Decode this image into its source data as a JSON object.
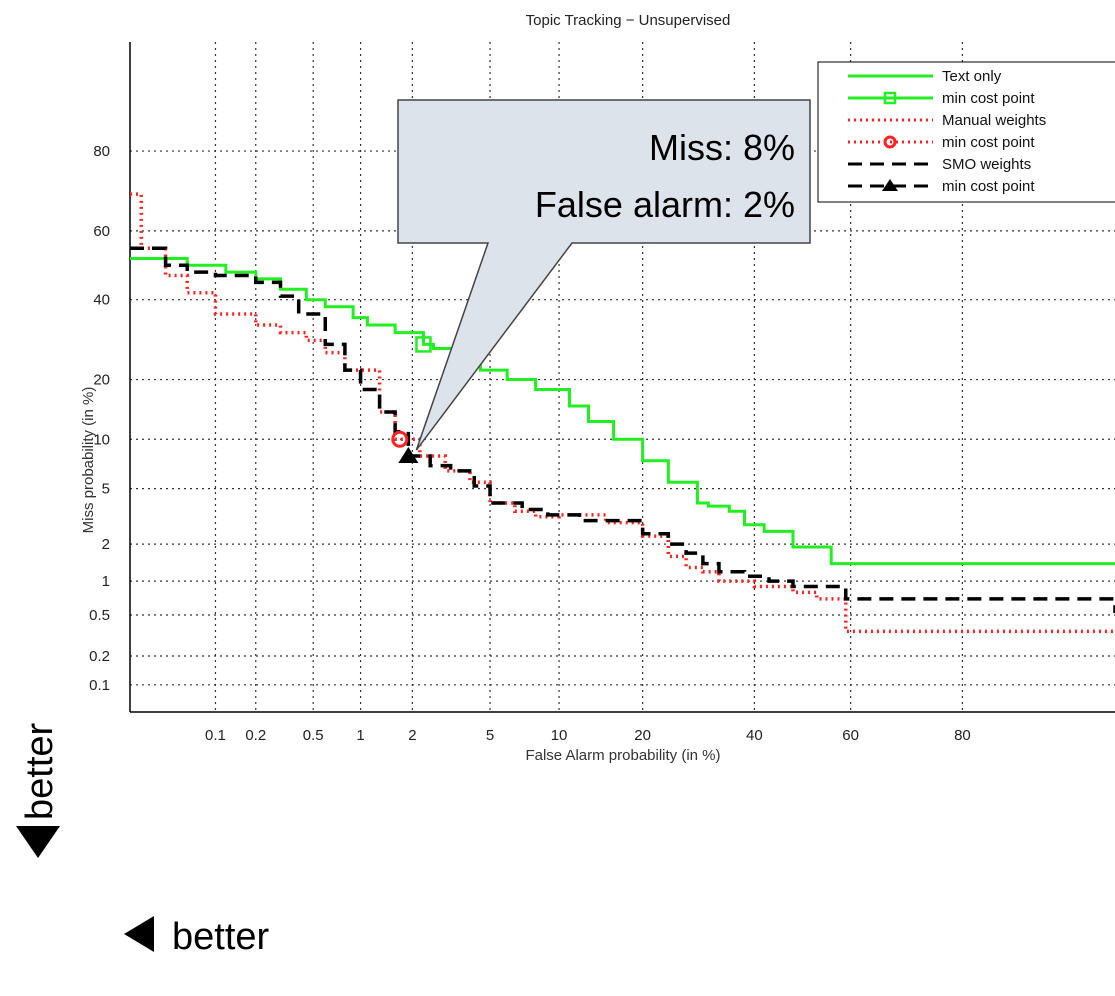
{
  "chart_data": {
    "type": "line",
    "title": "Topic Tracking − Unsupervised",
    "xlabel": "False Alarm probability (in %)",
    "ylabel": "Miss probability (in %)",
    "x_scale": "normal-deviate",
    "y_scale": "normal-deviate",
    "xlim": [
      0.02,
      95
    ],
    "ylim": [
      0.05,
      95
    ],
    "x_ticks": [
      0.1,
      0.2,
      0.5,
      1,
      2,
      5,
      10,
      20,
      40,
      60,
      80
    ],
    "x_tick_labels": [
      "0.1",
      "0.2",
      "0.5",
      "1",
      "2",
      "5",
      "10",
      "20",
      "40",
      "60",
      "80"
    ],
    "y_ticks": [
      0.1,
      0.2,
      0.5,
      1,
      2,
      5,
      10,
      20,
      40,
      60,
      80
    ],
    "y_tick_labels": [
      "0.1",
      "0.2",
      "0.5",
      "1",
      "2",
      "5",
      "10",
      "20",
      "40",
      "60",
      "80"
    ],
    "grid": true,
    "legend_position": "top-right",
    "series": [
      {
        "name": "Text only",
        "color": "#22ee22",
        "style": "solid",
        "x": [
          0.02,
          0.06,
          0.12,
          0.2,
          0.3,
          0.45,
          0.6,
          0.9,
          1.1,
          1.6,
          2.3,
          2.6,
          3.5,
          4.5,
          6,
          8,
          11,
          13,
          16,
          20,
          24,
          29,
          31,
          35,
          38,
          42,
          48,
          56,
          95
        ],
        "y": [
          52,
          50,
          48,
          46,
          43,
          40,
          38,
          35,
          33,
          31,
          28,
          27,
          24,
          22,
          20,
          18,
          15,
          12.5,
          10,
          7.5,
          5.5,
          4,
          3.8,
          3.5,
          2.8,
          2.5,
          1.9,
          1.4,
          1.4
        ]
      },
      {
        "name": "Manual weights",
        "color": "#ff2222",
        "style": "dotted",
        "x": [
          0.02,
          0.025,
          0.04,
          0.06,
          0.1,
          0.2,
          0.3,
          0.45,
          0.6,
          0.8,
          1.0,
          1.3,
          1.6,
          2.2,
          3.0,
          4.0,
          5.0,
          6.5,
          8.0,
          10,
          15,
          20,
          24,
          27,
          30,
          33,
          35,
          40,
          48,
          53,
          59,
          95
        ],
        "y": [
          70,
          55,
          47,
          42,
          36,
          33,
          31,
          29,
          26,
          22,
          22,
          14,
          10,
          8,
          6.5,
          5.5,
          4.0,
          3.5,
          3.2,
          3.3,
          2.9,
          2.3,
          1.6,
          1.3,
          1.2,
          1.0,
          1.0,
          0.9,
          0.8,
          0.7,
          0.35,
          0.35
        ]
      },
      {
        "name": "SMO weights",
        "color": "#000000",
        "style": "dashed",
        "x": [
          0.02,
          0.04,
          0.06,
          0.1,
          0.2,
          0.3,
          0.4,
          0.6,
          0.8,
          1.0,
          1.3,
          1.6,
          1.9,
          2.5,
          3.2,
          4.2,
          5.0,
          7.0,
          9.0,
          12,
          17,
          20,
          24,
          27,
          30,
          33,
          38,
          43,
          48,
          59,
          95
        ],
        "y": [
          55,
          50,
          48,
          47,
          45,
          41,
          36,
          28,
          22,
          18,
          14,
          11,
          8,
          7,
          6.5,
          5.2,
          4.0,
          3.6,
          3.3,
          3.0,
          3.0,
          2.4,
          2.0,
          1.7,
          1.4,
          1.2,
          1.1,
          1.0,
          0.9,
          0.7,
          0.52
        ]
      }
    ],
    "min_cost_points": [
      {
        "series": "Text only",
        "marker": "square",
        "x": 2.3,
        "y": 28,
        "color": "#22ee22"
      },
      {
        "series": "Manual weights",
        "marker": "circle",
        "x": 1.7,
        "y": 10,
        "color": "#ff2222"
      },
      {
        "series": "SMO weights",
        "marker": "triangle",
        "x": 1.9,
        "y": 8,
        "color": "#000000"
      }
    ],
    "legend": [
      {
        "label": "Text only",
        "color": "#22ee22",
        "style": "solid",
        "marker": ""
      },
      {
        "label": "min cost point",
        "color": "#22ee22",
        "style": "solid",
        "marker": "square"
      },
      {
        "label": "Manual weights",
        "color": "#ff2222",
        "style": "dotted",
        "marker": ""
      },
      {
        "label": "min cost point",
        "color": "#ff2222",
        "style": "dotted",
        "marker": "circle"
      },
      {
        "label": "SMO weights",
        "color": "#000000",
        "style": "dashed",
        "marker": ""
      },
      {
        "label": "min cost point",
        "color": "#000000",
        "style": "dashed",
        "marker": "triangle"
      }
    ],
    "callout": {
      "line1": "Miss: 8%",
      "line2": "False alarm: 2%",
      "points_to": {
        "x": 1.9,
        "y": 8
      }
    }
  },
  "annotations": {
    "better_vertical": "better",
    "better_horizontal": "better"
  }
}
